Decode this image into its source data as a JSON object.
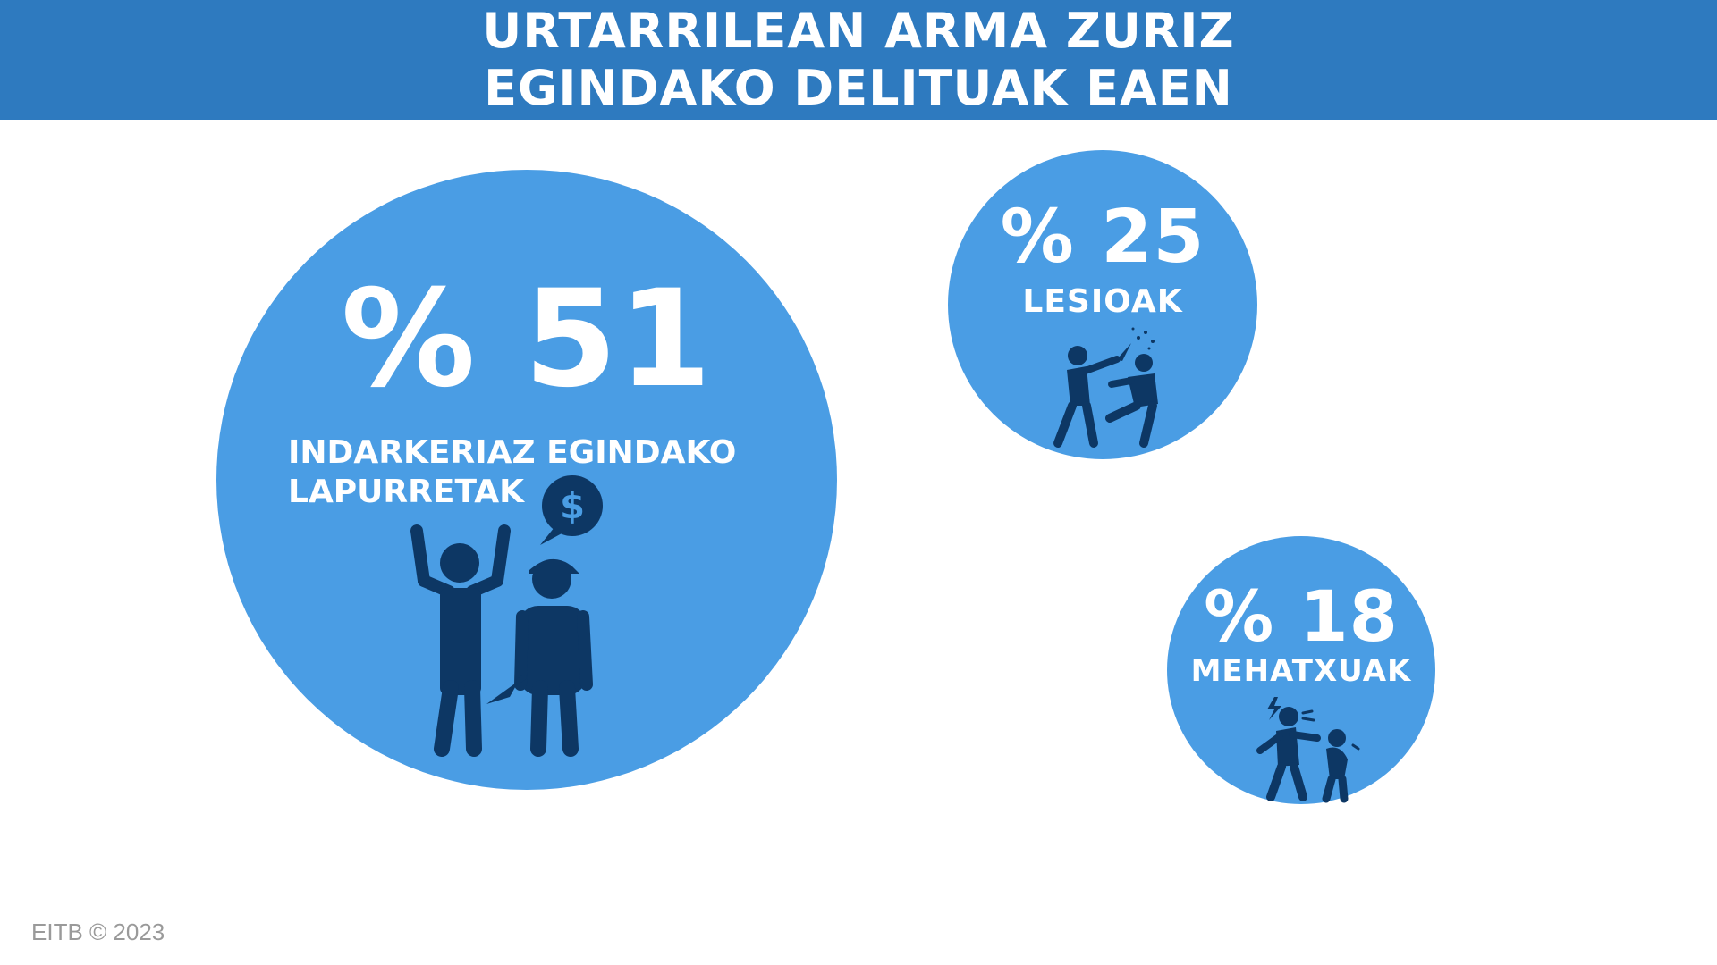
{
  "header": {
    "title_line1": "URTARRILEAN ARMA ZURIZ",
    "title_line2": "EGINDAKO DELITUAK EAEN"
  },
  "colors": {
    "header_bg": "#2e7abf",
    "bubble": "#4a9de4",
    "icon": "#0d3764",
    "text": "#ffffff"
  },
  "chart_data": {
    "type": "bubble",
    "title": "URTARRILEAN ARMA ZURIZ EGINDAKO DELITUAK EAEN",
    "categories": [
      {
        "percent_label": "% 51",
        "label_line1": "INDARKERIAZ EGINDAKO",
        "label_line2": "LAPURRETAK",
        "value": 51,
        "icon": "robbery-with-knife-icon"
      },
      {
        "percent_label": "% 25",
        "label_line1": "LESIOAK",
        "label_line2": "",
        "value": 25,
        "icon": "assault-injury-icon"
      },
      {
        "percent_label": "% 18",
        "label_line1": "MEHATXUAK",
        "label_line2": "",
        "value": 18,
        "icon": "threat-icon"
      }
    ]
  },
  "footer": {
    "credit": "EITB © 2023"
  }
}
